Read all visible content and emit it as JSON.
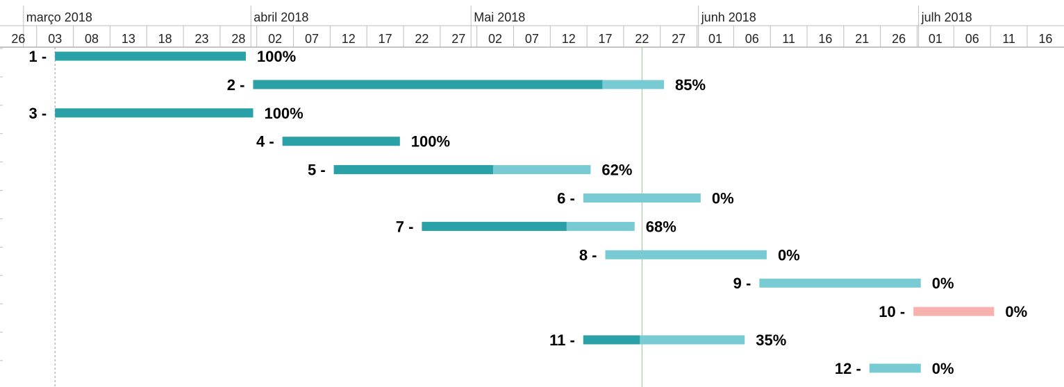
{
  "chart_data": {
    "type": "gantt",
    "months": [
      {
        "label": "março 2018",
        "start_day": 0
      },
      {
        "label": "abril 2018",
        "start_day": 31
      },
      {
        "label": "Mai 2018",
        "start_day": 61
      },
      {
        "label": "junh 2018",
        "start_day": 92
      },
      {
        "label": "julh 2018",
        "start_day": 122
      }
    ],
    "day_ticks": [
      "26",
      "03",
      "08",
      "13",
      "18",
      "23",
      "28",
      "02",
      "07",
      "12",
      "17",
      "22",
      "27",
      "02",
      "07",
      "12",
      "17",
      "22",
      "27",
      "01",
      "06",
      "11",
      "16",
      "21",
      "26",
      "01",
      "06",
      "11",
      "16"
    ],
    "today_day": 87.5,
    "markers": [
      7.5,
      149.5
    ],
    "tasks": [
      {
        "label": "1 -",
        "start": 7.5,
        "end": 33.5,
        "percent": 100,
        "percent_label": "100%",
        "color": "#2aa0a7"
      },
      {
        "label": "2 -",
        "start": 34.5,
        "end": 90.5,
        "percent": 85,
        "percent_label": "85%",
        "color": "#2aa0a7"
      },
      {
        "label": "3 -",
        "start": 7.5,
        "end": 34.5,
        "percent": 100,
        "percent_label": "100%",
        "color": "#2aa0a7"
      },
      {
        "label": "4 -",
        "start": 38.5,
        "end": 54.5,
        "percent": 100,
        "percent_label": "100%",
        "color": "#2aa0a7"
      },
      {
        "label": "5 -",
        "start": 45.5,
        "end": 80.5,
        "percent": 62,
        "percent_label": "62%",
        "color": "#2aa0a7"
      },
      {
        "label": "6 -",
        "start": 79.5,
        "end": 95.5,
        "percent": 0,
        "percent_label": "0%",
        "color": "#2aa0a7"
      },
      {
        "label": "7 -",
        "start": 57.5,
        "end": 86.5,
        "percent": 68,
        "percent_label": "68%",
        "color": "#2aa0a7"
      },
      {
        "label": "8 -",
        "start": 82.5,
        "end": 104.5,
        "percent": 0,
        "percent_label": "0%",
        "color": "#2aa0a7"
      },
      {
        "label": "9 -",
        "start": 103.5,
        "end": 125.5,
        "percent": 0,
        "percent_label": "0%",
        "color": "#2aa0a7"
      },
      {
        "label": "10 -",
        "start": 124.5,
        "end": 135.5,
        "percent": 0,
        "percent_label": "0%",
        "color": "#f7b2b0",
        "late": true
      },
      {
        "label": "11 -",
        "start": 79.5,
        "end": 101.5,
        "percent": 35,
        "percent_label": "35%",
        "color": "#2aa0a7"
      },
      {
        "label": "12 -",
        "start": 118.5,
        "end": 125.5,
        "percent": 0,
        "percent_label": "0%",
        "color": "#2aa0a7"
      }
    ],
    "colors": {
      "done": "#2aa0a7",
      "remaining": "#79cbd3",
      "late": "#f7b2b0",
      "today_line": "#8dc58d",
      "grid": "#bdbdbd",
      "marker_line": "#9a9a9a"
    }
  }
}
